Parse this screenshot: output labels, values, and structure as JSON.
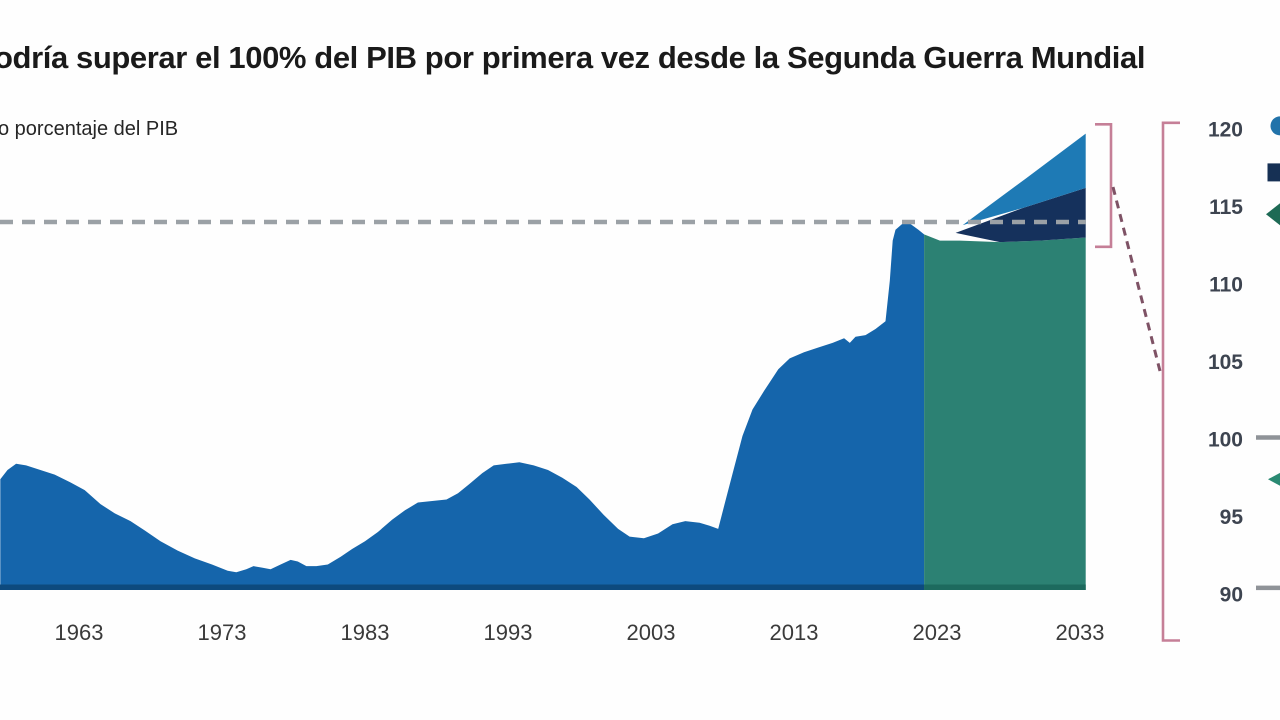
{
  "header": {
    "title": "odría superar el 100% del PIB por primera vez desde la Segunda Guerra Mundial",
    "subtitle": "o porcentaje del PIB"
  },
  "chart_data": {
    "type": "area",
    "title": "odría superar el 100% del PIB por primera vez desde la Segunda Guerra Mundial",
    "subtitle": "o porcentaje del PIB",
    "xlabel": "",
    "ylabel": "o porcentaje del PIB",
    "x_ticks": [
      1963,
      1973,
      1983,
      1993,
      2003,
      2013,
      2023,
      2033
    ],
    "y_ticks": [
      120,
      115,
      110,
      105,
      100,
      95,
      90
    ],
    "xlim": [
      1957.5,
      2033.4
    ],
    "ylim": [
      90,
      121
    ],
    "grid": false,
    "legend_position": "right-clipped",
    "reference_line": {
      "value": 114,
      "style": "dashed",
      "color": "#9ba1a6"
    },
    "series": [
      {
        "name": "deuda-historica",
        "type": "area",
        "color": "#1565ab",
        "points": [
          [
            1957.5,
            97.4
          ],
          [
            1958.0,
            98.0
          ],
          [
            1958.6,
            98.4
          ],
          [
            1959.3,
            98.3
          ],
          [
            1960.3,
            98.0
          ],
          [
            1961.3,
            97.7
          ],
          [
            1962.4,
            97.2
          ],
          [
            1963.4,
            96.7
          ],
          [
            1964.5,
            95.8
          ],
          [
            1965.5,
            95.2
          ],
          [
            1966.6,
            94.7
          ],
          [
            1967.6,
            94.1
          ],
          [
            1968.7,
            93.4
          ],
          [
            1969.9,
            92.8
          ],
          [
            1971.1,
            92.3
          ],
          [
            1972.3,
            91.9
          ],
          [
            1973.4,
            91.5
          ],
          [
            1974.0,
            91.4
          ],
          [
            1974.7,
            91.6
          ],
          [
            1975.2,
            91.8
          ],
          [
            1975.8,
            91.7
          ],
          [
            1976.4,
            91.6
          ],
          [
            1977.1,
            91.9
          ],
          [
            1977.8,
            92.2
          ],
          [
            1978.3,
            92.1
          ],
          [
            1978.9,
            91.8
          ],
          [
            1979.6,
            91.8
          ],
          [
            1980.4,
            91.9
          ],
          [
            1981.3,
            92.4
          ],
          [
            1982.1,
            92.9
          ],
          [
            1983.0,
            93.4
          ],
          [
            1983.9,
            94.0
          ],
          [
            1984.9,
            94.8
          ],
          [
            1985.8,
            95.4
          ],
          [
            1986.7,
            95.9
          ],
          [
            1987.7,
            96.0
          ],
          [
            1988.7,
            96.1
          ],
          [
            1989.5,
            96.5
          ],
          [
            1990.3,
            97.1
          ],
          [
            1991.2,
            97.8
          ],
          [
            1992.0,
            98.3
          ],
          [
            1992.9,
            98.4
          ],
          [
            1993.8,
            98.5
          ],
          [
            1994.8,
            98.3
          ],
          [
            1995.8,
            98.0
          ],
          [
            1996.8,
            97.5
          ],
          [
            1997.8,
            96.9
          ],
          [
            1998.7,
            96.1
          ],
          [
            1999.7,
            95.1
          ],
          [
            2000.7,
            94.2
          ],
          [
            2001.5,
            93.7
          ],
          [
            2002.5,
            93.6
          ],
          [
            2003.5,
            93.9
          ],
          [
            2004.5,
            94.5
          ],
          [
            2005.4,
            94.7
          ],
          [
            2006.4,
            94.6
          ],
          [
            2007.1,
            94.4
          ],
          [
            2007.7,
            94.2
          ],
          [
            2008.2,
            96.0
          ],
          [
            2008.8,
            98.1
          ],
          [
            2009.4,
            100.2
          ],
          [
            2010.1,
            101.9
          ],
          [
            2010.9,
            103.1
          ],
          [
            2011.9,
            104.5
          ],
          [
            2012.7,
            105.2
          ],
          [
            2013.7,
            105.6
          ],
          [
            2014.7,
            105.9
          ],
          [
            2015.7,
            106.2
          ],
          [
            2016.5,
            106.5
          ],
          [
            2016.9,
            106.2
          ],
          [
            2017.3,
            106.6
          ],
          [
            2018.0,
            106.7
          ],
          [
            2018.7,
            107.1
          ],
          [
            2019.4,
            107.6
          ],
          [
            2019.7,
            110.2
          ],
          [
            2019.9,
            112.8
          ],
          [
            2020.1,
            113.5
          ],
          [
            2020.6,
            113.9
          ],
          [
            2021.1,
            113.9
          ],
          [
            2021.7,
            113.5
          ],
          [
            2022.1,
            113.2
          ]
        ]
      },
      {
        "name": "proyeccion-central",
        "type": "area",
        "color": "#2c8173",
        "points": [
          [
            2022.1,
            113.2
          ],
          [
            2023.2,
            112.8
          ],
          [
            2024.6,
            112.8
          ],
          [
            2027.4,
            112.7
          ],
          [
            2030.2,
            112.8
          ],
          [
            2033.4,
            113.0
          ]
        ]
      },
      {
        "name": "proyeccion-banda-media",
        "type": "band",
        "color": "#15315c",
        "upper": [
          [
            2024.3,
            113.3
          ],
          [
            2029.0,
            114.9
          ],
          [
            2033.4,
            116.2
          ]
        ],
        "lower": [
          [
            2033.4,
            113.0
          ],
          [
            2030.2,
            112.8
          ],
          [
            2027.4,
            112.7
          ]
        ]
      },
      {
        "name": "proyeccion-abanico-superior",
        "type": "band",
        "color": "#1e7ab5",
        "upper": [
          [
            2024.8,
            113.8
          ],
          [
            2029.2,
            116.8
          ],
          [
            2033.4,
            119.7
          ]
        ],
        "lower": [
          [
            2033.4,
            116.2
          ],
          [
            2029.0,
            114.9
          ]
        ]
      }
    ],
    "annotations": {
      "bracket_color": "#c57f97",
      "connector_color": "#7e5265",
      "small_bracket_range": [
        112.4,
        120.3
      ],
      "large_bracket_range": [
        87.0,
        120.4
      ],
      "legend_fragments": [
        {
          "shape": "circle",
          "color": "#2273aa",
          "value": 120.2
        },
        {
          "shape": "square",
          "color": "#163054",
          "value": 117.2
        },
        {
          "shape": "diamond",
          "color": "#1e6a55",
          "value": 114.5
        },
        {
          "shape": "dash",
          "color": "#8f9398",
          "value": 100.1
        },
        {
          "shape": "arrow-left",
          "color": "#2b8a73",
          "value": 97.4
        },
        {
          "shape": "dash",
          "color": "#8f9398",
          "value": 90.4
        }
      ]
    },
    "colors": {
      "historical": "#1565ab",
      "historical_base": "#0d4a7e",
      "projection": "#2c8173",
      "projection_base": "#1d6a5e",
      "band_mid": "#15315c",
      "fan": "#1e7ab5",
      "reference": "#9ba1a6",
      "tick_text": "#3d4450",
      "x_tick_text": "#3a3a3a"
    }
  }
}
